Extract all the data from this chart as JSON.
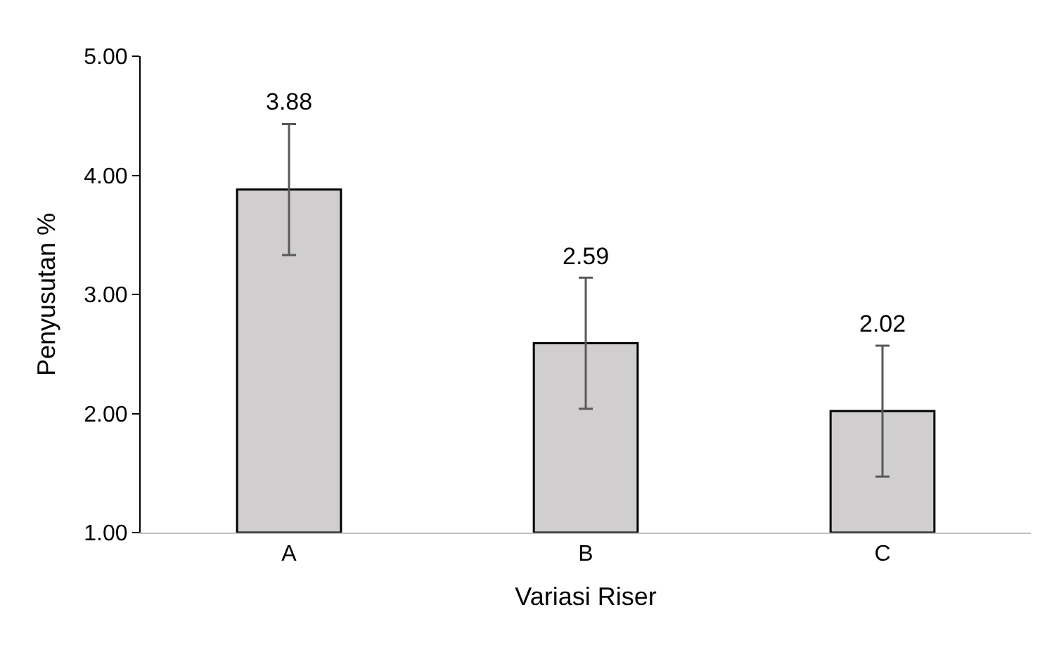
{
  "chart_data": {
    "type": "bar",
    "xlabel": "Variasi Riser",
    "ylabel": "Penyusutan %",
    "categories": [
      "A",
      "B",
      "C"
    ],
    "values": [
      3.88,
      2.59,
      2.02
    ],
    "errors": [
      0.55,
      0.55,
      0.55
    ],
    "color": "#d0cece",
    "ylim": [
      1,
      5
    ],
    "yticks": [
      {
        "value": 1,
        "label": "1.00"
      },
      {
        "value": 2,
        "label": "2.00"
      },
      {
        "value": 3,
        "label": "3.00"
      },
      {
        "value": 4,
        "label": "4.00"
      },
      {
        "value": 5,
        "label": "5.00"
      }
    ],
    "data_labels": true,
    "legend": false
  }
}
